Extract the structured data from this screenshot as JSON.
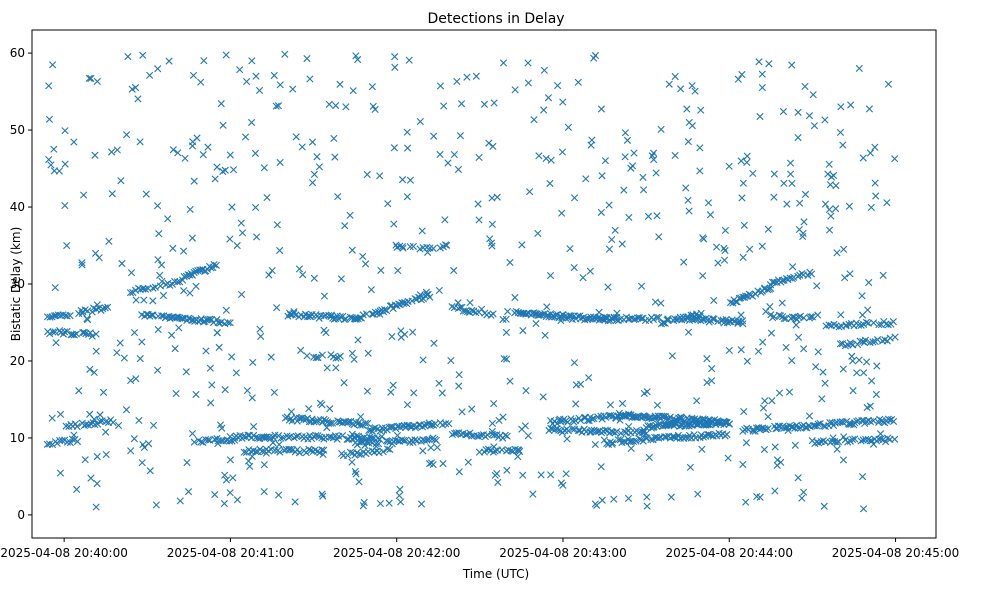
{
  "chart_data": {
    "type": "scatter",
    "title": "Detections in Delay",
    "xlabel": "Time (UTC)",
    "ylabel": "Bistatic Delay (km)",
    "marker": "x",
    "color": "#1f77b4",
    "x_unit": "seconds after 2025-04-08 20:40:00 UTC",
    "xlim": [
      -11.6,
      314.6
    ],
    "ylim": [
      -3.0,
      63.0
    ],
    "x_ticks": [
      {
        "value": 0,
        "label": "2025-04-08 20:40:00"
      },
      {
        "value": 60,
        "label": "2025-04-08 20:41:00"
      },
      {
        "value": 120,
        "label": "2025-04-08 20:42:00"
      },
      {
        "value": 180,
        "label": "2025-04-08 20:43:00"
      },
      {
        "value": 240,
        "label": "2025-04-08 20:44:00"
      },
      {
        "value": 300,
        "label": "2025-04-08 20:45:00"
      }
    ],
    "y_ticks": [
      {
        "value": 0,
        "label": "0"
      },
      {
        "value": 10,
        "label": "10"
      },
      {
        "value": 20,
        "label": "20"
      },
      {
        "value": 30,
        "label": "30"
      },
      {
        "value": 40,
        "label": "40"
      },
      {
        "value": 50,
        "label": "50"
      },
      {
        "value": 60,
        "label": "60"
      }
    ],
    "tracks": [
      {
        "name": "track-1",
        "x_start": -6,
        "x_end": 12,
        "y_start": 23.8,
        "y_end": 23.4,
        "step": 0.7
      },
      {
        "name": "track-2",
        "x_start": -6,
        "x_end": 16,
        "y_start": 25.5,
        "y_end": 27.0,
        "step": 0.8
      },
      {
        "name": "track-3",
        "x_start": 0,
        "x_end": 18,
        "y_start": 11.5,
        "y_end": 12.2,
        "step": 0.8
      },
      {
        "name": "track-4",
        "x_start": -6,
        "x_end": 6,
        "y_start": 9.2,
        "y_end": 9.8,
        "step": 0.9
      },
      {
        "name": "track-5",
        "x_start": 24,
        "x_end": 38,
        "y_start": 29.0,
        "y_end": 30.0,
        "step": 0.9
      },
      {
        "name": "track-6",
        "x_start": 38,
        "x_end": 55,
        "y_start": 30.0,
        "y_end": 32.5,
        "step": 0.6
      },
      {
        "name": "track-7",
        "x_start": 28,
        "x_end": 60,
        "y_start": 26.0,
        "y_end": 25.0,
        "step": 0.6
      },
      {
        "name": "track-8",
        "x_start": 47,
        "x_end": 62,
        "y_start": 9.5,
        "y_end": 9.8,
        "step": 0.8
      },
      {
        "name": "track-9",
        "x_start": 60,
        "x_end": 115,
        "y_start": 10.2,
        "y_end": 10.0,
        "step": 0.7
      },
      {
        "name": "track-10",
        "x_start": 65,
        "x_end": 95,
        "y_start": 8.3,
        "y_end": 8.3,
        "step": 0.8
      },
      {
        "name": "track-11",
        "x_start": 80,
        "x_end": 110,
        "y_start": 12.5,
        "y_end": 11.8,
        "step": 0.6
      },
      {
        "name": "track-12",
        "x_start": 80,
        "x_end": 105,
        "y_start": 26.0,
        "y_end": 25.5,
        "step": 0.6
      },
      {
        "name": "track-13",
        "x_start": 105,
        "x_end": 132,
        "y_start": 25.5,
        "y_end": 28.5,
        "step": 0.6
      },
      {
        "name": "track-14",
        "x_start": 90,
        "x_end": 100,
        "y_start": 20.6,
        "y_end": 20.6,
        "step": 0.8
      },
      {
        "name": "track-15",
        "x_start": 100,
        "x_end": 118,
        "y_start": 7.8,
        "y_end": 8.5,
        "step": 0.8
      },
      {
        "name": "track-16",
        "x_start": 105,
        "x_end": 135,
        "y_start": 9.2,
        "y_end": 9.8,
        "step": 0.7
      },
      {
        "name": "track-17",
        "x_start": 110,
        "x_end": 140,
        "y_start": 11.0,
        "y_end": 12.0,
        "step": 0.6
      },
      {
        "name": "track-18",
        "x_start": 120,
        "x_end": 140,
        "y_start": 34.8,
        "y_end": 34.8,
        "step": 1.2
      },
      {
        "name": "track-19",
        "x_start": 140,
        "x_end": 160,
        "y_start": 27.0,
        "y_end": 25.5,
        "step": 0.7
      },
      {
        "name": "track-20",
        "x_start": 140,
        "x_end": 160,
        "y_start": 10.5,
        "y_end": 10.2,
        "step": 0.8
      },
      {
        "name": "track-21",
        "x_start": 150,
        "x_end": 165,
        "y_start": 8.3,
        "y_end": 8.3,
        "step": 0.8
      },
      {
        "name": "track-22",
        "x_start": 160,
        "x_end": 180,
        "y_start": 26.5,
        "y_end": 25.8,
        "step": 0.5
      },
      {
        "name": "track-23",
        "x_start": 180,
        "x_end": 200,
        "y_start": 25.8,
        "y_end": 25.3,
        "step": 0.5
      },
      {
        "name": "track-24",
        "x_start": 175,
        "x_end": 200,
        "y_start": 12.0,
        "y_end": 12.8,
        "step": 0.6
      },
      {
        "name": "track-25",
        "x_start": 175,
        "x_end": 210,
        "y_start": 11.0,
        "y_end": 10.8,
        "step": 0.7
      },
      {
        "name": "track-26",
        "x_start": 195,
        "x_end": 215,
        "y_start": 25.5,
        "y_end": 25.5,
        "step": 0.7
      },
      {
        "name": "track-27",
        "x_start": 200,
        "x_end": 240,
        "y_start": 13.0,
        "y_end": 12.0,
        "step": 0.4
      },
      {
        "name": "track-28",
        "x_start": 195,
        "x_end": 240,
        "y_start": 9.5,
        "y_end": 10.5,
        "step": 0.7
      },
      {
        "name": "track-29",
        "x_start": 210,
        "x_end": 240,
        "y_start": 11.5,
        "y_end": 12.0,
        "step": 0.5
      },
      {
        "name": "track-30",
        "x_start": 215,
        "x_end": 230,
        "y_start": 25.0,
        "y_end": 26.0,
        "step": 0.6
      },
      {
        "name": "track-31",
        "x_start": 225,
        "x_end": 245,
        "y_start": 25.5,
        "y_end": 25.0,
        "step": 0.6
      },
      {
        "name": "track-32",
        "x_start": 240,
        "x_end": 255,
        "y_start": 27.5,
        "y_end": 29.5,
        "step": 0.6
      },
      {
        "name": "track-33",
        "x_start": 245,
        "x_end": 265,
        "y_start": 11.0,
        "y_end": 11.5,
        "step": 0.6
      },
      {
        "name": "track-34",
        "x_start": 255,
        "x_end": 270,
        "y_start": 25.8,
        "y_end": 25.5,
        "step": 0.6
      },
      {
        "name": "track-35",
        "x_start": 255,
        "x_end": 270,
        "y_start": 30.0,
        "y_end": 31.5,
        "step": 0.7
      },
      {
        "name": "track-36",
        "x_start": 265,
        "x_end": 300,
        "y_start": 11.5,
        "y_end": 12.3,
        "step": 0.6
      },
      {
        "name": "track-37",
        "x_start": 270,
        "x_end": 300,
        "y_start": 9.5,
        "y_end": 9.8,
        "step": 0.8
      },
      {
        "name": "track-38",
        "x_start": 275,
        "x_end": 300,
        "y_start": 24.5,
        "y_end": 25.0,
        "step": 0.9
      },
      {
        "name": "track-39",
        "x_start": 280,
        "x_end": 300,
        "y_start": 22.0,
        "y_end": 23.0,
        "step": 0.9
      }
    ],
    "noise": {
      "count": 700,
      "x_range": [
        -6,
        300
      ],
      "y_range": [
        0.5,
        60
      ]
    },
    "grid": false,
    "legend": "none"
  }
}
